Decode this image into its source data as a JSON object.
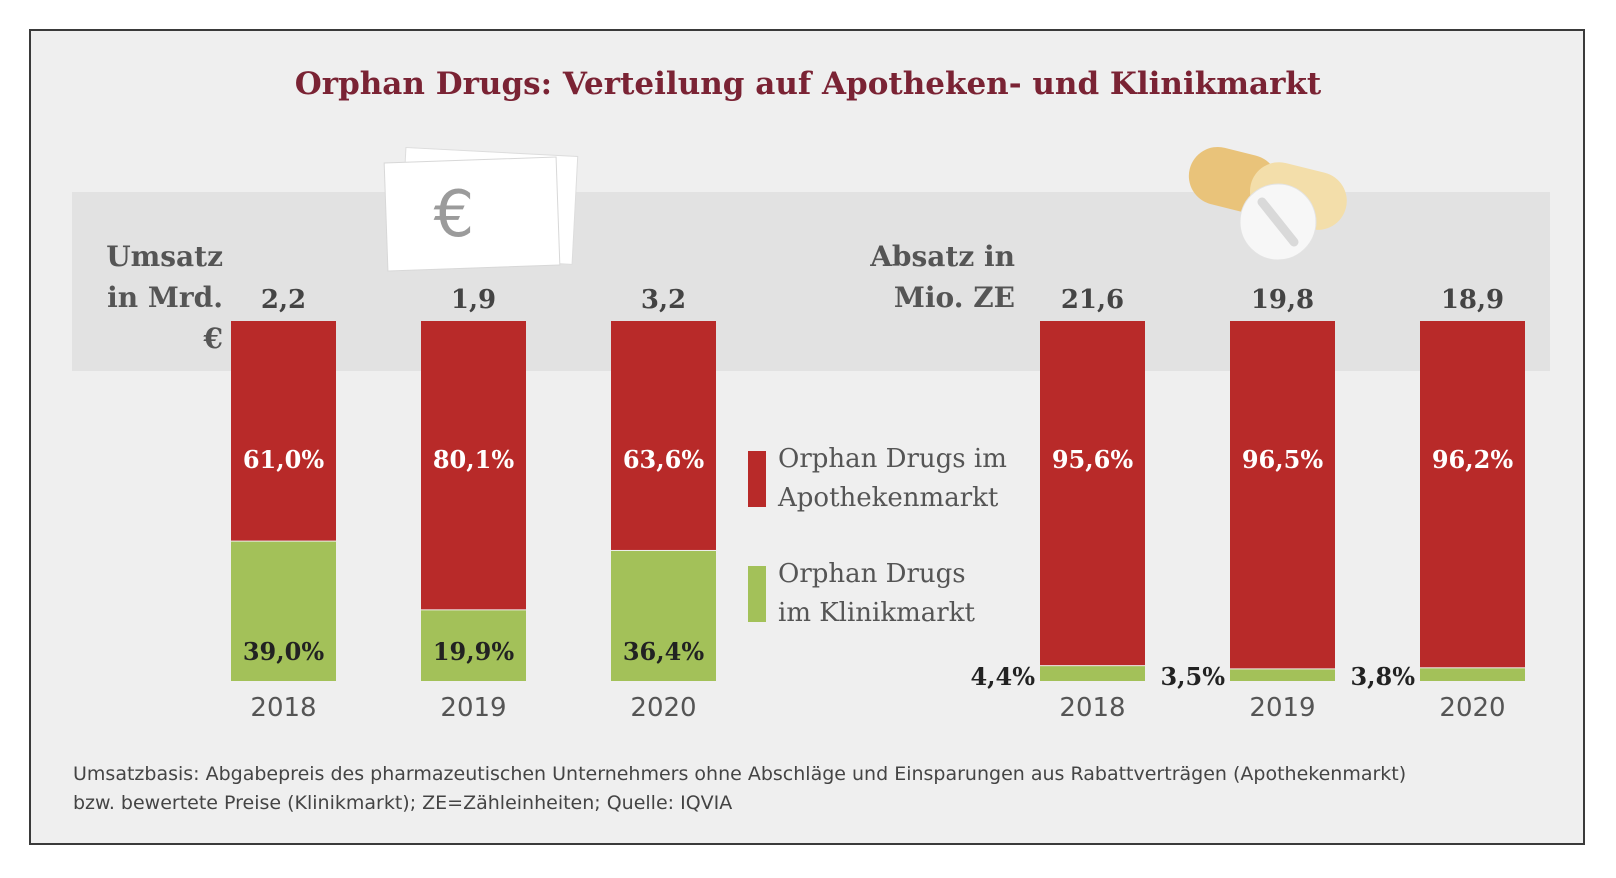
{
  "title": "Orphan Drugs: Verteilung auf Apotheken- und Klinikmarkt",
  "colors": {
    "apotheke": "#b82a29",
    "klinik": "#a3c159",
    "title": "#7a2334",
    "band": "#e2e2e2",
    "background": "#efefef"
  },
  "icons": [
    "euro-banknotes-icon",
    "pill-capsule-icon"
  ],
  "legend": {
    "apotheke": "Orphan Drugs im Apothekenmarkt",
    "apotheke_line1": "Orphan Drugs im",
    "apotheke_line2": "Apothekenmarkt",
    "klinik": "Orphan Drugs im Klinikmarkt",
    "klinik_line1": "Orphan Drugs",
    "klinik_line2": "im Klinikmarkt"
  },
  "footnote": {
    "line1": "Umsatzbasis: Abgabepreis des pharmazeutischen Unternehmers ohne Abschläge und Einsparungen aus Rabattverträgen (Apothekenmarkt)",
    "line2": "bzw. bewertete Preise (Klinikmarkt); ZE=Zähleinheiten; Quelle: IQVIA"
  },
  "chart_data": [
    {
      "type": "bar",
      "stacked": "percent",
      "label_line1": "Umsatz",
      "label_line2": "in Mrd. €",
      "categories": [
        "2018",
        "2019",
        "2020"
      ],
      "totals": [
        2.2,
        1.9,
        3.2
      ],
      "total_labels": [
        "2,2",
        "1,9",
        "3,2"
      ],
      "series": [
        {
          "name": "Orphan Drugs im Apothekenmarkt",
          "values": [
            61.0,
            80.1,
            63.6
          ],
          "labels": [
            "61,0%",
            "80,1%",
            "63,6%"
          ]
        },
        {
          "name": "Orphan Drugs im Klinikmarkt",
          "values": [
            39.0,
            19.9,
            36.4
          ],
          "labels": [
            "39,0%",
            "19,9%",
            "36,4%"
          ]
        }
      ]
    },
    {
      "type": "bar",
      "stacked": "percent",
      "label_line1": "Absatz in",
      "label_line2": "Mio. ZE",
      "categories": [
        "2018",
        "2019",
        "2020"
      ],
      "totals": [
        21.6,
        19.8,
        18.9
      ],
      "total_labels": [
        "21,6",
        "19,8",
        "18,9"
      ],
      "series": [
        {
          "name": "Orphan Drugs im Apothekenmarkt",
          "values": [
            95.6,
            96.5,
            96.2
          ],
          "labels": [
            "95,6%",
            "96,5%",
            "96,2%"
          ]
        },
        {
          "name": "Orphan Drugs im Klinikmarkt",
          "values": [
            4.4,
            3.5,
            3.8
          ],
          "labels": [
            "4,4%",
            "3,5%",
            "3,8%"
          ]
        }
      ]
    }
  ]
}
